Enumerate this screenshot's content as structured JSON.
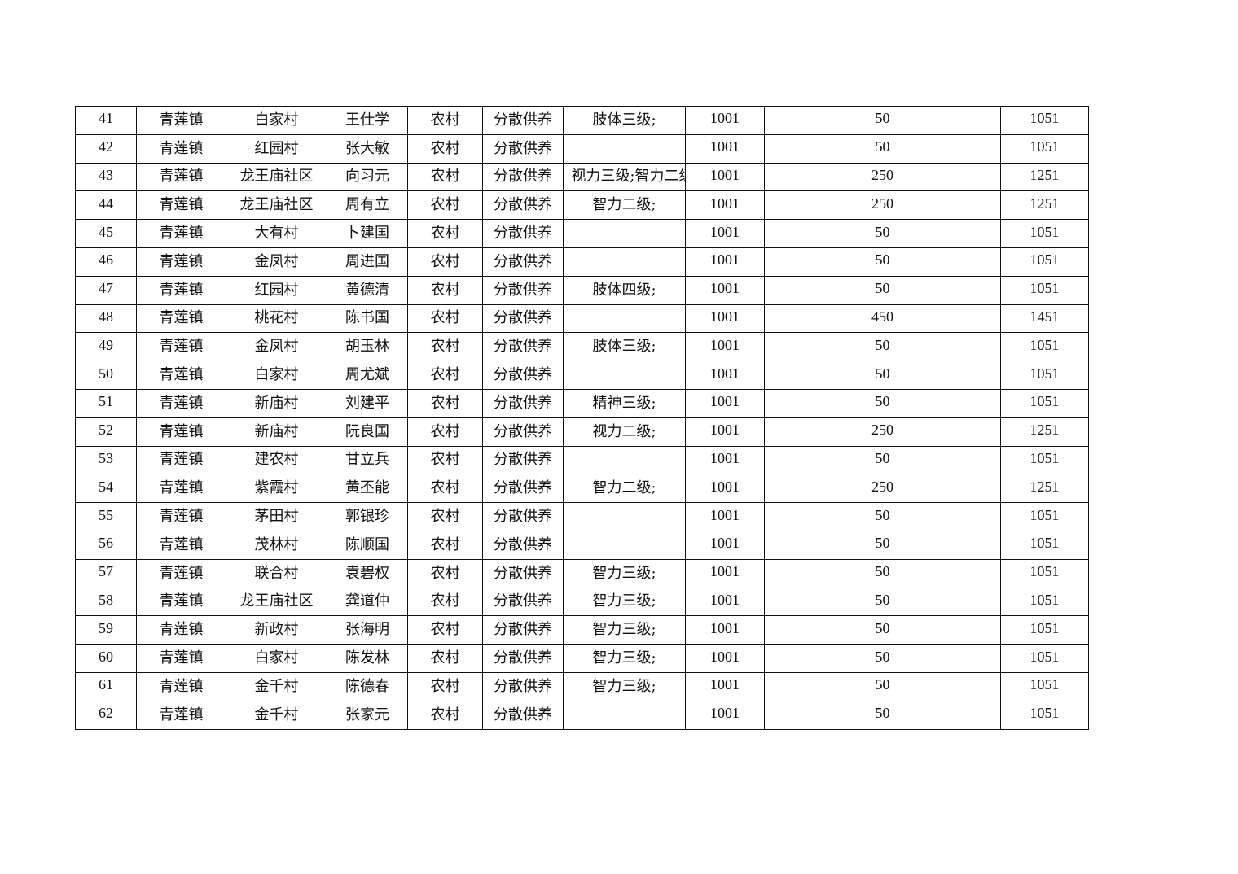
{
  "table": {
    "rows": [
      [
        "41",
        "青莲镇",
        "白家村",
        "王仕学",
        "农村",
        "分散供养",
        "肢体三级;",
        "1001",
        "50",
        "1051"
      ],
      [
        "42",
        "青莲镇",
        "红园村",
        "张大敏",
        "农村",
        "分散供养",
        "",
        "1001",
        "50",
        "1051"
      ],
      [
        "43",
        "青莲镇",
        "龙王庙社区",
        "向习元",
        "农村",
        "分散供养",
        "视力三级;智力二级;",
        "1001",
        "250",
        "1251"
      ],
      [
        "44",
        "青莲镇",
        "龙王庙社区",
        "周有立",
        "农村",
        "分散供养",
        "智力二级;",
        "1001",
        "250",
        "1251"
      ],
      [
        "45",
        "青莲镇",
        "大有村",
        "卜建国",
        "农村",
        "分散供养",
        "",
        "1001",
        "50",
        "1051"
      ],
      [
        "46",
        "青莲镇",
        "金凤村",
        "周进国",
        "农村",
        "分散供养",
        "",
        "1001",
        "50",
        "1051"
      ],
      [
        "47",
        "青莲镇",
        "红园村",
        "黄德清",
        "农村",
        "分散供养",
        "肢体四级;",
        "1001",
        "50",
        "1051"
      ],
      [
        "48",
        "青莲镇",
        "桃花村",
        "陈书国",
        "农村",
        "分散供养",
        "",
        "1001",
        "450",
        "1451"
      ],
      [
        "49",
        "青莲镇",
        "金凤村",
        "胡玉林",
        "农村",
        "分散供养",
        "肢体三级;",
        "1001",
        "50",
        "1051"
      ],
      [
        "50",
        "青莲镇",
        "白家村",
        "周尤斌",
        "农村",
        "分散供养",
        "",
        "1001",
        "50",
        "1051"
      ],
      [
        "51",
        "青莲镇",
        "新庙村",
        "刘建平",
        "农村",
        "分散供养",
        "精神三级;",
        "1001",
        "50",
        "1051"
      ],
      [
        "52",
        "青莲镇",
        "新庙村",
        "阮良国",
        "农村",
        "分散供养",
        "视力二级;",
        "1001",
        "250",
        "1251"
      ],
      [
        "53",
        "青莲镇",
        "建农村",
        "甘立兵",
        "农村",
        "分散供养",
        "",
        "1001",
        "50",
        "1051"
      ],
      [
        "54",
        "青莲镇",
        "紫霞村",
        "黄丕能",
        "农村",
        "分散供养",
        "智力二级;",
        "1001",
        "250",
        "1251"
      ],
      [
        "55",
        "青莲镇",
        "茅田村",
        "郭银珍",
        "农村",
        "分散供养",
        "",
        "1001",
        "50",
        "1051"
      ],
      [
        "56",
        "青莲镇",
        "茂林村",
        "陈顺国",
        "农村",
        "分散供养",
        "",
        "1001",
        "50",
        "1051"
      ],
      [
        "57",
        "青莲镇",
        "联合村",
        "袁碧权",
        "农村",
        "分散供养",
        "智力三级;",
        "1001",
        "50",
        "1051"
      ],
      [
        "58",
        "青莲镇",
        "龙王庙社区",
        "龚道仲",
        "农村",
        "分散供养",
        "智力三级;",
        "1001",
        "50",
        "1051"
      ],
      [
        "59",
        "青莲镇",
        "新政村",
        "张海明",
        "农村",
        "分散供养",
        "智力三级;",
        "1001",
        "50",
        "1051"
      ],
      [
        "60",
        "青莲镇",
        "白家村",
        "陈发林",
        "农村",
        "分散供养",
        "智力三级;",
        "1001",
        "50",
        "1051"
      ],
      [
        "61",
        "青莲镇",
        "金千村",
        "陈德春",
        "农村",
        "分散供养",
        "智力三级;",
        "1001",
        "50",
        "1051"
      ],
      [
        "62",
        "青莲镇",
        "金千村",
        "张家元",
        "农村",
        "分散供养",
        "",
        "1001",
        "50",
        "1051"
      ]
    ]
  }
}
